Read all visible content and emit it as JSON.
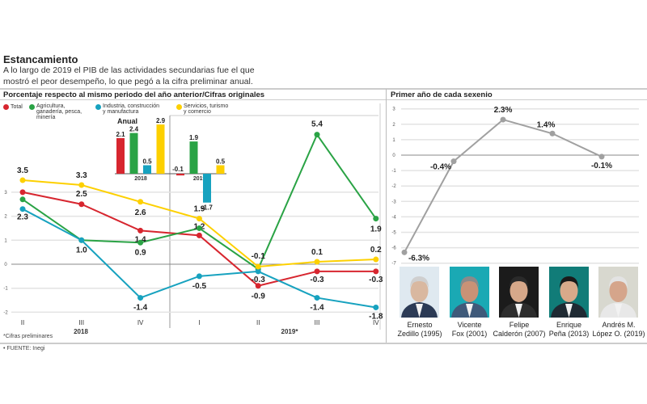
{
  "title": "Estancamiento",
  "subtitle": "A lo largo de 2019 el PIB de las actividades secundarias fue el que mostró el peor desempeño, lo que pegó a la cifra preliminar anual.",
  "left_header": "Porcentaje respecto al mismo periodo del año anterior/Cifras originales",
  "right_header": "Primer año de cada sexenio",
  "legend": [
    {
      "label": "Total",
      "color": "#d7262f"
    },
    {
      "label": "Agricultura, ganadería, pesca, minería",
      "color": "#2aa345"
    },
    {
      "label": "Industria, construcción y manufactura",
      "color": "#17a2bf"
    },
    {
      "label": "Servicios, turismo y comercio",
      "color": "#fdd000"
    }
  ],
  "footnote": "*Cifras preliminares",
  "source": "• FUENTE: Inegi",
  "chart_data": [
    {
      "type": "line",
      "x": [
        "II",
        "III",
        "IV",
        "I",
        "II",
        "III",
        "IV"
      ],
      "year_labels": [
        "2018",
        "2019*"
      ],
      "ylim": [
        -2,
        3
      ],
      "yticks": [
        -2,
        -1,
        0,
        1,
        2,
        3
      ],
      "grid": true,
      "series": [
        {
          "name": "Total",
          "color": "#d7262f",
          "values": [
            3.0,
            2.5,
            1.4,
            1.2,
            -0.9,
            -0.3,
            -0.3
          ],
          "labels": [
            null,
            "2.5",
            "1.4",
            "1.2",
            "-0.9",
            "-0.3",
            "-0.3"
          ]
        },
        {
          "name": "Agricultura, ganadería, pesca, minería",
          "color": "#2aa345",
          "values": [
            2.7,
            1.0,
            0.9,
            1.5,
            -0.2,
            5.4,
            1.9
          ],
          "labels": [
            null,
            "1.0",
            "0.9",
            null,
            null,
            "5.4",
            "1.9"
          ]
        },
        {
          "name": "Industria, construcción y manufactura",
          "color": "#17a2bf",
          "values": [
            2.3,
            1.0,
            -1.4,
            -0.5,
            -0.3,
            -1.4,
            -1.8
          ],
          "labels": [
            "2.3",
            null,
            "-1.4",
            "-0.5",
            "-0.3",
            "-1.4",
            "-1.8"
          ]
        },
        {
          "name": "Servicios, turismo y comercio",
          "color": "#fdd000",
          "values": [
            3.5,
            3.3,
            2.6,
            1.9,
            -0.1,
            0.1,
            0.2
          ],
          "labels": [
            "3.5",
            "3.3",
            "2.6",
            "1.9",
            "-0.1",
            "0.1",
            "0.2"
          ]
        }
      ]
    },
    {
      "type": "bar",
      "title": "Anual",
      "categories": [
        "2018",
        "2019*"
      ],
      "series": [
        {
          "name": "Total",
          "color": "#d7262f",
          "values": [
            2.1,
            -0.1
          ]
        },
        {
          "name": "Agricultura, ganadería, pesca, minería",
          "color": "#2aa345",
          "values": [
            2.4,
            1.9
          ]
        },
        {
          "name": "Industria, construcción y manufactura",
          "color": "#17a2bf",
          "values": [
            0.5,
            -1.7
          ]
        },
        {
          "name": "Servicios, turismo y comercio",
          "color": "#fdd000",
          "values": [
            2.9,
            0.5
          ]
        }
      ]
    },
    {
      "type": "line",
      "title": "Primer año de cada sexenio",
      "categories": [
        "Ernesto Zedillo (1995)",
        "Vicente Fox (2001)",
        "Felipe Calderón (2007)",
        "Enrique Peña (2013)",
        "Andrés M. López O. (2019)"
      ],
      "values": [
        -6.3,
        -0.4,
        2.3,
        1.4,
        -0.1
      ],
      "labels": [
        "-6.3%",
        "-0.4%",
        "2.3%",
        "1.4%",
        "-0.1%"
      ],
      "ylim": [
        -7,
        3
      ],
      "yticks": [
        3,
        2,
        1,
        0,
        -1,
        -2,
        -3,
        -4,
        -5,
        -6,
        -7
      ],
      "grid": true,
      "color": "#a0a0a0"
    }
  ],
  "presidents": [
    {
      "line1": "Ernesto",
      "line2": "Zedillo (1995)",
      "bg": "#dfe9f0",
      "skin": "#d9b8a0",
      "hair": "#cfcfcf",
      "suit": "#2b3a55"
    },
    {
      "line1": "Vicente",
      "line2": "Fox (2001)",
      "bg": "#1aa9b4",
      "skin": "#c99276",
      "hair": "#8a8a8a",
      "suit": "#3f5a7a"
    },
    {
      "line1": "Felipe",
      "line2": "Calderón (2007)",
      "bg": "#1b1b1b",
      "skin": "#d6a88a",
      "hair": "#2a2a2a",
      "suit": "#2d2d2d"
    },
    {
      "line1": "Enrique",
      "line2": "Peña (2013)",
      "bg": "#117c78",
      "skin": "#d8a98a",
      "hair": "#1a1a1a",
      "suit": "#1f2a33"
    },
    {
      "line1": "Andrés M.",
      "line2": "López O. (2019)",
      "bg": "#d8d8cf",
      "skin": "#d5a58b",
      "hair": "#e3e3e3",
      "suit": "#e8e8e8"
    }
  ]
}
